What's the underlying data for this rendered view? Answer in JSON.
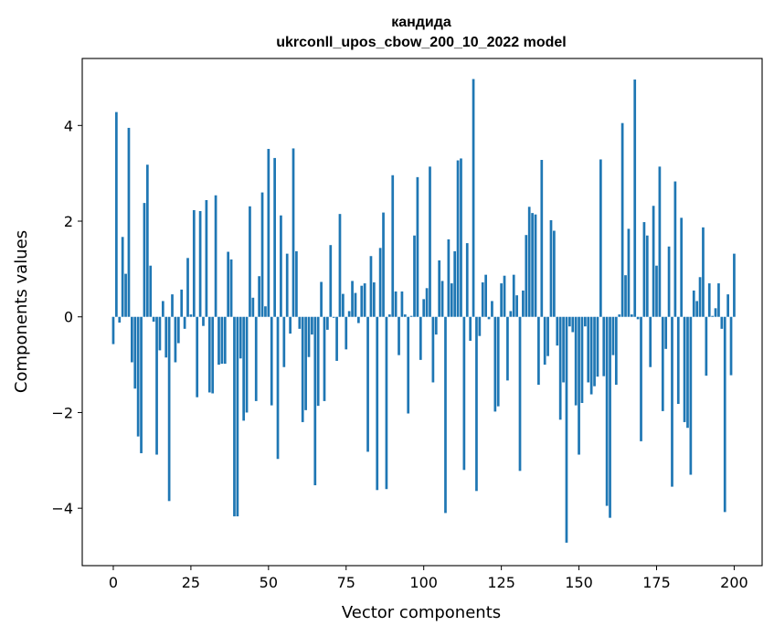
{
  "chart_data": {
    "type": "bar",
    "title": [
      "кандида",
      "ukrconll_upos_cbow_200_10_2022 model"
    ],
    "xlabel": "Vector components",
    "ylabel": "Components values",
    "xlim": [
      -10,
      209
    ],
    "ylim": [
      -5.2,
      5.4
    ],
    "xticks": [
      0,
      25,
      50,
      75,
      100,
      125,
      150,
      175,
      200
    ],
    "yticks": [
      -4,
      -2,
      0,
      2,
      4
    ],
    "xtick_labels": [
      "0",
      "25",
      "50",
      "75",
      "100",
      "125",
      "150",
      "175",
      "200"
    ],
    "ytick_labels": [
      "−4",
      "−2",
      "0",
      "2",
      "4"
    ],
    "grid": false,
    "bar_color": "#1f77b4",
    "values": [
      -0.57,
      4.28,
      -0.12,
      1.67,
      0.9,
      3.95,
      -0.95,
      -1.5,
      -2.5,
      -2.85,
      2.38,
      3.18,
      1.07,
      -0.1,
      -2.88,
      -0.7,
      0.33,
      -0.85,
      -3.85,
      0.47,
      -0.95,
      -0.55,
      0.57,
      -0.25,
      1.23,
      0.05,
      2.23,
      -1.68,
      2.21,
      -0.19,
      2.44,
      -1.58,
      -1.6,
      2.54,
      -1.0,
      -0.98,
      -0.98,
      1.36,
      1.2,
      -4.17,
      -4.17,
      -0.87,
      -2.17,
      -2.0,
      2.31,
      0.4,
      -1.76,
      0.85,
      2.6,
      0.22,
      3.51,
      -1.85,
      3.32,
      -2.97,
      2.12,
      -1.05,
      1.32,
      -0.35,
      3.52,
      1.37,
      -0.25,
      -2.2,
      -1.95,
      -0.84,
      -0.37,
      -3.52,
      -1.86,
      0.73,
      -1.76,
      -0.27,
      1.5,
      -0.02,
      -0.92,
      2.15,
      0.48,
      -0.68,
      0.12,
      0.75,
      0.5,
      -0.13,
      0.65,
      0.7,
      -2.82,
      1.27,
      0.72,
      -3.62,
      1.44,
      2.18,
      -3.6,
      0.05,
      2.96,
      0.53,
      -0.8,
      0.53,
      0.05,
      -2.02,
      0.02,
      1.7,
      2.92,
      -0.9,
      0.37,
      0.6,
      3.14,
      -1.37,
      -0.37,
      1.18,
      0.75,
      -4.1,
      1.62,
      0.7,
      1.37,
      3.27,
      3.31,
      -3.2,
      1.54,
      -0.5,
      4.97,
      -3.64,
      -0.4,
      0.72,
      0.88,
      -0.05,
      0.33,
      -1.98,
      -1.87,
      0.7,
      0.86,
      -1.33,
      0.12,
      0.88,
      0.45,
      -3.22,
      0.55,
      1.71,
      2.3,
      2.17,
      2.14,
      -1.42,
      3.28,
      -1.0,
      -0.82,
      2.02,
      1.8,
      -0.6,
      -2.15,
      -1.37,
      -4.72,
      -0.2,
      -0.32,
      -1.85,
      -2.88,
      -1.8,
      -0.2,
      -1.37,
      -1.62,
      -1.45,
      -1.25,
      3.29,
      -1.24,
      -3.95,
      -4.2,
      -0.8,
      -1.42,
      0.05,
      4.05,
      0.87,
      1.84,
      0.05,
      4.96,
      -0.05,
      -2.6,
      1.98,
      1.7,
      -1.05,
      2.32,
      1.07,
      3.14,
      -1.97,
      -0.67,
      1.47,
      -3.55,
      2.83,
      -1.82,
      2.07,
      -2.2,
      -2.32,
      -3.3,
      0.55,
      0.33,
      0.83,
      1.87,
      -1.23,
      0.7,
      0.02,
      0.18,
      0.7,
      -0.25,
      -4.08,
      0.47,
      -1.22,
      1.32
    ]
  }
}
